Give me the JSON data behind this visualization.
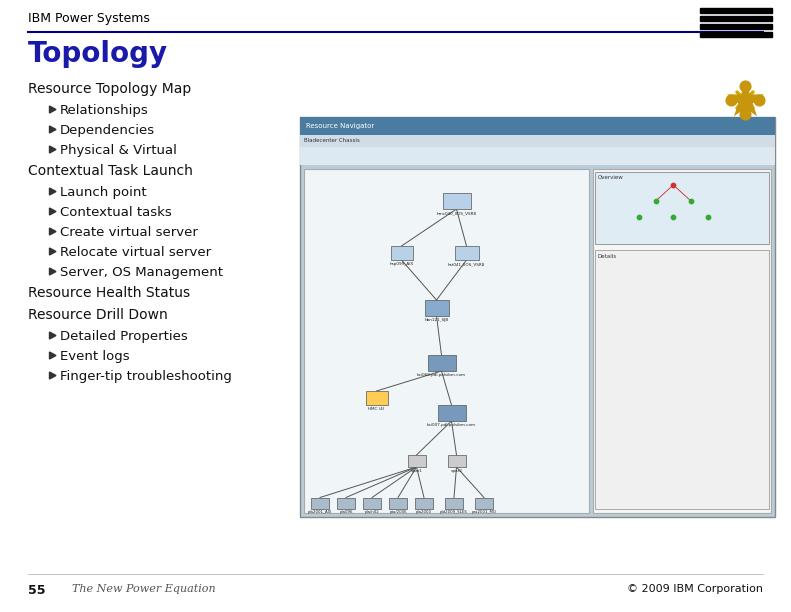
{
  "title": "Topology",
  "header": "IBM Power Systems",
  "footer_left_num": "55",
  "footer_left_text": "The New Power Equation",
  "footer_right": "© 2009 IBM Corporation",
  "bg_color": "#ffffff",
  "title_color": "#1a1aaa",
  "header_color": "#000000",
  "body_lines": [
    {
      "text": "Resource Topology Map",
      "indent": 0,
      "bullet": false
    },
    {
      "text": "Relationships",
      "indent": 1,
      "bullet": true
    },
    {
      "text": "Dependencies",
      "indent": 1,
      "bullet": true
    },
    {
      "text": "Physical & Virtual",
      "indent": 1,
      "bullet": true
    },
    {
      "text": "Contextual Task Launch",
      "indent": 0,
      "bullet": false
    },
    {
      "text": "Launch point",
      "indent": 1,
      "bullet": true
    },
    {
      "text": "Contextual tasks",
      "indent": 1,
      "bullet": true
    },
    {
      "text": "Create virtual server",
      "indent": 1,
      "bullet": true
    },
    {
      "text": "Relocate virtual server",
      "indent": 1,
      "bullet": true
    },
    {
      "text": "Server, OS Management",
      "indent": 1,
      "bullet": true
    },
    {
      "text": "Resource Health Status",
      "indent": 0,
      "bullet": false
    },
    {
      "text": "Resource Drill Down",
      "indent": 0,
      "bullet": false
    },
    {
      "text": "Detailed Properties",
      "indent": 1,
      "bullet": true
    },
    {
      "text": "Event logs",
      "indent": 1,
      "bullet": true
    },
    {
      "text": "Finger-tip troubleshooting",
      "indent": 1,
      "bullet": true
    }
  ],
  "title_fontsize": 20,
  "header_fontsize": 9,
  "body_fontsize": 9.5,
  "footer_fontsize": 8
}
